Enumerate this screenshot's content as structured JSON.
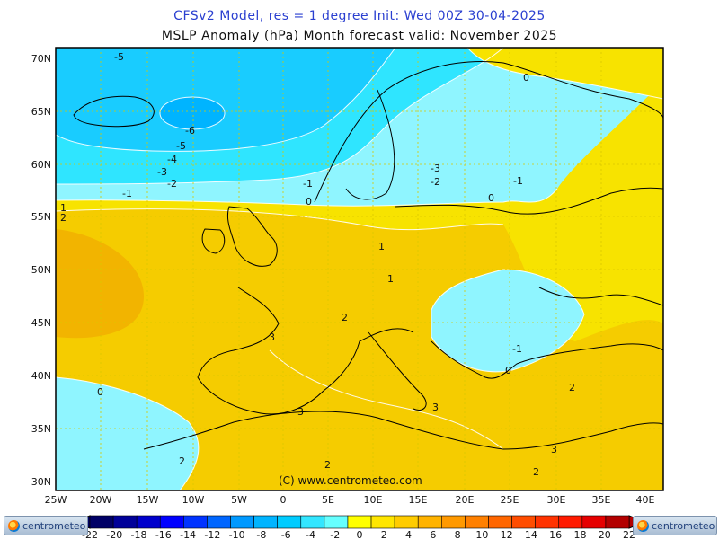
{
  "header": {
    "title_line1": "CFSv2 Model, res = 1 degree    Init: Wed 00Z 30-04-2025",
    "title_line2": "MSLP Anomaly (hPa)     Month forecast valid: November 2025"
  },
  "map": {
    "projection": "lat-lon",
    "lon_range": [
      "25W",
      "40E"
    ],
    "lat_range": [
      "30N",
      "70N"
    ],
    "lon_ticks": [
      "25W",
      "20W",
      "15W",
      "10W",
      "5W",
      "0",
      "5E",
      "10E",
      "15E",
      "20E",
      "25E",
      "30E",
      "35E",
      "40E"
    ],
    "lat_ticks": [
      "70N",
      "65N",
      "60N",
      "55N",
      "50N",
      "45N",
      "40N",
      "35N",
      "30N"
    ],
    "copyright": "(C) www.centrometeo.com",
    "contour_labels": [
      "-5",
      "-6",
      "-5",
      "-4",
      "-3",
      "-2",
      "-1",
      "-1",
      "0",
      "1",
      "2",
      "-3",
      "-2",
      "-1",
      "0",
      "0",
      "1",
      "1",
      "2",
      "3",
      "0",
      "3",
      "3",
      "2",
      "-1",
      "0",
      "2",
      "3",
      "2",
      "2"
    ]
  },
  "colorbar": {
    "labels": [
      "-22",
      "-20",
      "-18",
      "-16",
      "-14",
      "-12",
      "-10",
      "-8",
      "-6",
      "-4",
      "-2",
      "0",
      "2",
      "4",
      "6",
      "8",
      "10",
      "12",
      "14",
      "16",
      "18",
      "20",
      "22"
    ],
    "colors": [
      "#000066",
      "#000099",
      "#0000cc",
      "#0000ff",
      "#0033ff",
      "#0066ff",
      "#0099ff",
      "#00b4ff",
      "#00ccff",
      "#33e6ff",
      "#66ffff",
      "#ffff00",
      "#ffe600",
      "#ffcc00",
      "#ffb300",
      "#ff9900",
      "#ff8000",
      "#ff6600",
      "#ff4d00",
      "#ff3300",
      "#ff1a00",
      "#e60000",
      "#b30000"
    ]
  },
  "logos": {
    "left": "centrometeo",
    "right": "centrometeo"
  }
}
